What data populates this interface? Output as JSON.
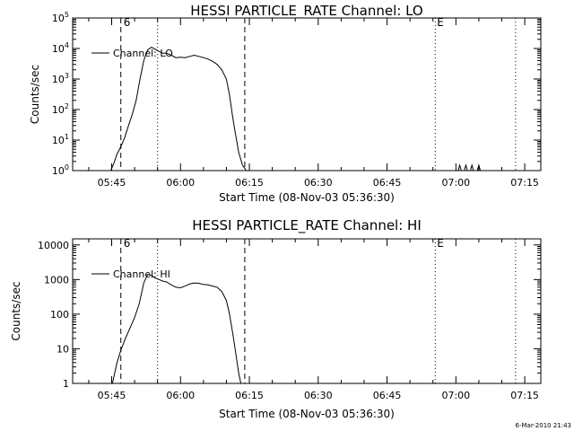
{
  "chart_data": [
    {
      "type": "line",
      "title": "HESSI PARTICLE_RATE Channel: LO",
      "xlabel": "Start Time (08-Nov-03 05:36:30)",
      "ylabel": "Counts/sec",
      "y_scale": "log",
      "ylim": [
        1,
        100000
      ],
      "y_ticks": [
        1,
        10,
        100,
        1000,
        10000,
        100000
      ],
      "y_tick_labels": [
        {
          "base": "10",
          "exp": "0"
        },
        {
          "base": "10",
          "exp": "1"
        },
        {
          "base": "10",
          "exp": "2"
        },
        {
          "base": "10",
          "exp": "3"
        },
        {
          "base": "10",
          "exp": "4"
        },
        {
          "base": "10",
          "exp": "5"
        }
      ],
      "xlim": [
        "05:36:30",
        "07:18:30"
      ],
      "x_ticks": [
        "05:45",
        "06:00",
        "06:15",
        "06:30",
        "06:45",
        "07:00",
        "07:15"
      ],
      "grid": false,
      "legend": {
        "position": "top-left",
        "entries": [
          "Channel: LO"
        ]
      },
      "markers": {
        "dashed": [
          {
            "time": "05:47:00",
            "label": "6"
          },
          {
            "time": "06:14:00",
            "label": ""
          }
        ],
        "dotted": [
          {
            "time": "05:55:00",
            "label": ""
          },
          {
            "time": "06:55:30",
            "label": "E"
          },
          {
            "time": "07:13:00",
            "label": ""
          }
        ]
      },
      "series": [
        {
          "name": "Channel: LO",
          "points": [
            [
              "05:44:50",
              1
            ],
            [
              "05:45:30",
              1.8
            ],
            [
              "05:46:10",
              3.5
            ],
            [
              "05:47:00",
              6
            ],
            [
              "05:47:50",
              12
            ],
            [
              "05:48:40",
              30
            ],
            [
              "05:49:30",
              70
            ],
            [
              "05:50:20",
              200
            ],
            [
              "05:51:10",
              1000
            ],
            [
              "05:52:00",
              4000
            ],
            [
              "05:52:50",
              9000
            ],
            [
              "05:53:40",
              11000
            ],
            [
              "05:54:30",
              9500
            ],
            [
              "05:55:20",
              8000
            ],
            [
              "05:56:10",
              7000
            ],
            [
              "05:57:00",
              7000
            ],
            [
              "05:58:00",
              6000
            ],
            [
              "05:59:00",
              5000
            ],
            [
              "06:00:00",
              5200
            ],
            [
              "06:01:00",
              5000
            ],
            [
              "06:02:00",
              5500
            ],
            [
              "06:03:00",
              6000
            ],
            [
              "06:04:00",
              5500
            ],
            [
              "06:05:00",
              5000
            ],
            [
              "06:06:00",
              4500
            ],
            [
              "06:07:00",
              3800
            ],
            [
              "06:08:00",
              3000
            ],
            [
              "06:09:00",
              2000
            ],
            [
              "06:10:00",
              1000
            ],
            [
              "06:10:40",
              300
            ],
            [
              "06:11:20",
              60
            ],
            [
              "06:12:00",
              15
            ],
            [
              "06:12:40",
              4
            ],
            [
              "06:13:30",
              1.5
            ],
            [
              "06:14:20",
              1
            ]
          ]
        },
        {
          "name": "",
          "points": [
            [
              "07:00:30",
              1
            ],
            [
              "07:00:50",
              1.5
            ],
            [
              "07:01:10",
              1
            ],
            [
              "07:01:50",
              1
            ],
            [
              "07:02:10",
              1.5
            ],
            [
              "07:02:30",
              1
            ],
            [
              "07:03:10",
              1
            ],
            [
              "07:03:30",
              1.5
            ],
            [
              "07:03:50",
              1
            ],
            [
              "07:04:40",
              1
            ],
            [
              "07:05:00",
              1.5
            ],
            [
              "07:05:20",
              1
            ]
          ]
        }
      ]
    },
    {
      "type": "line",
      "title": "HESSI PARTICLE_RATE Channel: HI",
      "xlabel": "Start Time (08-Nov-03 05:36:30)",
      "ylabel": "Counts/sec",
      "y_scale": "log",
      "ylim": [
        1,
        15000
      ],
      "y_ticks": [
        1,
        10,
        100,
        1000,
        10000
      ],
      "y_tick_labels": [
        "1",
        "10",
        "100",
        "1000",
        "10000"
      ],
      "xlim": [
        "05:36:30",
        "07:18:30"
      ],
      "x_ticks": [
        "05:45",
        "06:00",
        "06:15",
        "06:30",
        "06:45",
        "07:00",
        "07:15"
      ],
      "grid": false,
      "legend": {
        "position": "top-left",
        "entries": [
          "Channel: HI"
        ]
      },
      "markers": {
        "dashed": [
          {
            "time": "05:47:00",
            "label": "6"
          },
          {
            "time": "06:14:00",
            "label": ""
          }
        ],
        "dotted": [
          {
            "time": "05:55:00",
            "label": ""
          },
          {
            "time": "06:55:30",
            "label": "E"
          },
          {
            "time": "07:13:00",
            "label": ""
          }
        ]
      },
      "series": [
        {
          "name": "Channel: HI",
          "points": [
            [
              "05:45:10",
              1
            ],
            [
              "05:45:40",
              2
            ],
            [
              "05:46:10",
              4
            ],
            [
              "05:47:00",
              9
            ],
            [
              "05:48:00",
              20
            ],
            [
              "05:49:00",
              40
            ],
            [
              "05:50:00",
              80
            ],
            [
              "05:51:00",
              200
            ],
            [
              "05:52:00",
              800
            ],
            [
              "05:52:50",
              1400
            ],
            [
              "05:53:40",
              1300
            ],
            [
              "05:54:30",
              1100
            ],
            [
              "05:55:20",
              1000
            ],
            [
              "05:56:10",
              900
            ],
            [
              "05:57:00",
              850
            ],
            [
              "05:58:00",
              700
            ],
            [
              "05:59:00",
              600
            ],
            [
              "06:00:00",
              580
            ],
            [
              "06:01:00",
              650
            ],
            [
              "06:02:00",
              750
            ],
            [
              "06:03:00",
              800
            ],
            [
              "06:04:00",
              780
            ],
            [
              "06:05:00",
              720
            ],
            [
              "06:06:00",
              700
            ],
            [
              "06:07:00",
              650
            ],
            [
              "06:08:00",
              600
            ],
            [
              "06:09:00",
              450
            ],
            [
              "06:10:00",
              250
            ],
            [
              "06:10:40",
              100
            ],
            [
              "06:11:20",
              30
            ],
            [
              "06:12:00",
              8
            ],
            [
              "06:12:40",
              2
            ],
            [
              "06:13:10",
              1
            ]
          ]
        }
      ]
    }
  ],
  "footer": {
    "timestamp": "6-Mar-2010 21:43"
  }
}
